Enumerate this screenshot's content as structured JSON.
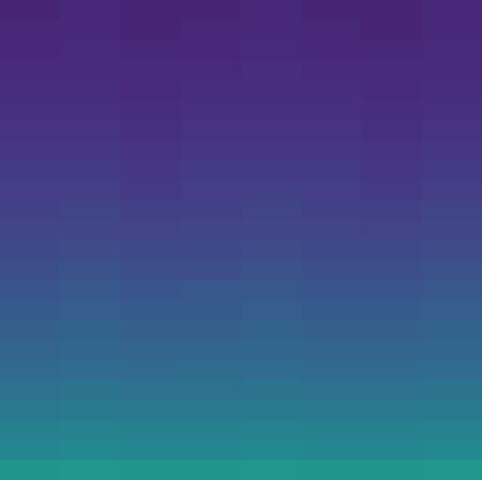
{
  "chart_data": {
    "type": "heatmap",
    "color": "viridis",
    "tick_labels": false,
    "zlim": [
      0,
      1
    ],
    "cells": [
      [
        0.1,
        0.11,
        0.1,
        0.1,
        0.11,
        0.1,
        0.1,
        0.11
      ],
      [
        0.11,
        0.11,
        0.1,
        0.11,
        0.11,
        0.11,
        0.1,
        0.11
      ],
      [
        0.11,
        0.12,
        0.11,
        0.11,
        0.12,
        0.11,
        0.11,
        0.12
      ],
      [
        0.12,
        0.12,
        0.12,
        0.12,
        0.13,
        0.12,
        0.12,
        0.12
      ],
      [
        0.13,
        0.13,
        0.12,
        0.13,
        0.13,
        0.13,
        0.12,
        0.13
      ],
      [
        0.14,
        0.14,
        0.13,
        0.14,
        0.14,
        0.14,
        0.13,
        0.14
      ],
      [
        0.15,
        0.15,
        0.14,
        0.15,
        0.15,
        0.15,
        0.14,
        0.15
      ],
      [
        0.16,
        0.16,
        0.15,
        0.16,
        0.16,
        0.16,
        0.15,
        0.16
      ],
      [
        0.17,
        0.17,
        0.16,
        0.17,
        0.17,
        0.17,
        0.16,
        0.17
      ],
      [
        0.18,
        0.18,
        0.17,
        0.18,
        0.19,
        0.18,
        0.17,
        0.18
      ],
      [
        0.19,
        0.2,
        0.19,
        0.19,
        0.2,
        0.19,
        0.19,
        0.2
      ],
      [
        0.21,
        0.21,
        0.2,
        0.21,
        0.21,
        0.21,
        0.2,
        0.21
      ],
      [
        0.22,
        0.23,
        0.22,
        0.22,
        0.23,
        0.22,
        0.22,
        0.23
      ],
      [
        0.24,
        0.25,
        0.24,
        0.24,
        0.25,
        0.24,
        0.24,
        0.25
      ],
      [
        0.26,
        0.27,
        0.26,
        0.27,
        0.27,
        0.26,
        0.26,
        0.27
      ],
      [
        0.28,
        0.29,
        0.28,
        0.28,
        0.29,
        0.28,
        0.28,
        0.29
      ],
      [
        0.3,
        0.31,
        0.3,
        0.3,
        0.31,
        0.3,
        0.3,
        0.31
      ],
      [
        0.32,
        0.33,
        0.32,
        0.32,
        0.33,
        0.32,
        0.32,
        0.33
      ],
      [
        0.34,
        0.35,
        0.34,
        0.35,
        0.35,
        0.34,
        0.34,
        0.35
      ],
      [
        0.37,
        0.38,
        0.37,
        0.37,
        0.38,
        0.37,
        0.37,
        0.38
      ],
      [
        0.4,
        0.41,
        0.4,
        0.4,
        0.41,
        0.4,
        0.4,
        0.41
      ],
      [
        0.43,
        0.44,
        0.43,
        0.43,
        0.44,
        0.43,
        0.43,
        0.44
      ],
      [
        0.46,
        0.47,
        0.46,
        0.46,
        0.47,
        0.46,
        0.46,
        0.47
      ],
      [
        0.52,
        0.53,
        0.52,
        0.52,
        0.53,
        0.52,
        0.52,
        0.53
      ]
    ]
  }
}
